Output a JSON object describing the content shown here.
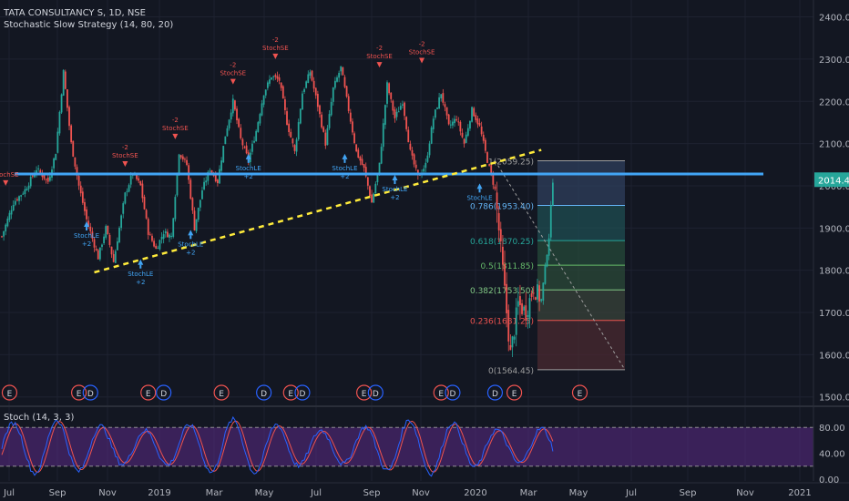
{
  "header": {
    "symbol_line": "TATA CONSULTANCY S, 1D, NSE",
    "strategy_line": "Stochastic Slow Strategy (14, 80, 20)"
  },
  "colors": {
    "background": "#131722",
    "grid": "#1e2230",
    "axis_text": "#b2b5be",
    "candle_up": "#26a69a",
    "candle_down": "#ef5350",
    "support_line": "#42a5f5",
    "trend_line": "#ffeb3b",
    "stoch_band": "#5b2a86",
    "stoch_k": "#2962ff",
    "stoch_d": "#ef5350",
    "price_label_bg": "#26a69a",
    "signal_long": "#42a5f5",
    "signal_short": "#ef5350"
  },
  "chart_data": [
    {
      "type": "candlestick",
      "x_ticks": [
        "Jul",
        "Sep",
        "Nov",
        "2019",
        "Mar",
        "May",
        "Jul",
        "Sep",
        "Nov",
        "2020",
        "Mar",
        "May",
        "Jul",
        "Sep",
        "Nov",
        "2021"
      ],
      "y_ticks": [
        "2400.00",
        "2300.00",
        "2200.00",
        "2100.00",
        "2000.00",
        "1900.00",
        "1800.00",
        "1700.00",
        "1600.00",
        "1500.00"
      ],
      "ylim": [
        1480,
        2440
      ],
      "last_price": "2014.45",
      "close_path": [
        {
          "t": 0,
          "v": 1880
        },
        {
          "t": 3,
          "v": 1960
        },
        {
          "t": 6,
          "v": 1990
        },
        {
          "t": 9,
          "v": 2040
        },
        {
          "t": 12,
          "v": 2010
        },
        {
          "t": 14,
          "v": 2080
        },
        {
          "t": 16,
          "v": 2270
        },
        {
          "t": 18,
          "v": 2100
        },
        {
          "t": 20,
          "v": 2000
        },
        {
          "t": 22,
          "v": 1920
        },
        {
          "t": 25,
          "v": 1830
        },
        {
          "t": 27,
          "v": 1900
        },
        {
          "t": 29,
          "v": 1820
        },
        {
          "t": 32,
          "v": 1980
        },
        {
          "t": 34,
          "v": 2030
        },
        {
          "t": 36,
          "v": 2000
        },
        {
          "t": 38,
          "v": 1890
        },
        {
          "t": 40,
          "v": 1850
        },
        {
          "t": 42,
          "v": 1890
        },
        {
          "t": 44,
          "v": 1880
        },
        {
          "t": 46,
          "v": 2080
        },
        {
          "t": 48,
          "v": 2050
        },
        {
          "t": 50,
          "v": 1900
        },
        {
          "t": 52,
          "v": 1990
        },
        {
          "t": 54,
          "v": 2040
        },
        {
          "t": 56,
          "v": 2010
        },
        {
          "t": 58,
          "v": 2120
        },
        {
          "t": 60,
          "v": 2200
        },
        {
          "t": 62,
          "v": 2110
        },
        {
          "t": 64,
          "v": 2060
        },
        {
          "t": 66,
          "v": 2130
        },
        {
          "t": 68,
          "v": 2220
        },
        {
          "t": 70,
          "v": 2260
        },
        {
          "t": 72,
          "v": 2250
        },
        {
          "t": 74,
          "v": 2150
        },
        {
          "t": 76,
          "v": 2080
        },
        {
          "t": 78,
          "v": 2220
        },
        {
          "t": 80,
          "v": 2270
        },
        {
          "t": 82,
          "v": 2190
        },
        {
          "t": 84,
          "v": 2100
        },
        {
          "t": 86,
          "v": 2230
        },
        {
          "t": 88,
          "v": 2280
        },
        {
          "t": 90,
          "v": 2180
        },
        {
          "t": 92,
          "v": 2080
        },
        {
          "t": 94,
          "v": 2040
        },
        {
          "t": 96,
          "v": 1960
        },
        {
          "t": 98,
          "v": 2050
        },
        {
          "t": 100,
          "v": 2240
        },
        {
          "t": 102,
          "v": 2160
        },
        {
          "t": 104,
          "v": 2200
        },
        {
          "t": 106,
          "v": 2080
        },
        {
          "t": 108,
          "v": 2020
        },
        {
          "t": 110,
          "v": 2050
        },
        {
          "t": 112,
          "v": 2160
        },
        {
          "t": 114,
          "v": 2220
        },
        {
          "t": 116,
          "v": 2140
        },
        {
          "t": 118,
          "v": 2160
        },
        {
          "t": 120,
          "v": 2100
        },
        {
          "t": 122,
          "v": 2180
        },
        {
          "t": 124,
          "v": 2140
        },
        {
          "t": 126,
          "v": 2060
        },
        {
          "t": 128,
          "v": 1990
        },
        {
          "t": 130,
          "v": 1800
        },
        {
          "t": 132,
          "v": 1600
        },
        {
          "t": 134,
          "v": 1720
        },
        {
          "t": 136,
          "v": 1700
        },
        {
          "t": 138,
          "v": 1760
        },
        {
          "t": 140,
          "v": 1730
        },
        {
          "t": 142,
          "v": 1880
        },
        {
          "t": 143,
          "v": 2014
        }
      ],
      "support_level": 2028,
      "trend_line": {
        "from": {
          "t": 24,
          "v": 1795
        },
        "to": {
          "t": 140,
          "v": 2085
        }
      },
      "fibonacci": [
        {
          "label": "1(2059.25)",
          "value": 2059.25,
          "color": "#9e9e9e"
        },
        {
          "label": "0.786(1953.40)",
          "value": 1953.4,
          "color": "#64b5f6"
        },
        {
          "label": "0.618(1870.25)",
          "value": 1870.25,
          "color": "#26a69a"
        },
        {
          "label": "0.5(1811.85)",
          "value": 1811.85,
          "color": "#66bb6a"
        },
        {
          "label": "0.382(1753.50)",
          "value": 1753.5,
          "color": "#81c784"
        },
        {
          "label": "0.236(1681.25)",
          "value": 1681.25,
          "color": "#ef5350"
        },
        {
          "label": "0(1564.45)",
          "value": 1564.45,
          "color": "#9e9e9e"
        }
      ],
      "signals": [
        {
          "kind": "short",
          "t": 1,
          "v": 1985,
          "label": "StochSE",
          "sub": ""
        },
        {
          "kind": "long",
          "t": 22,
          "v": 1920,
          "label": "StochLE",
          "sub": "+2"
        },
        {
          "kind": "short",
          "t": 32,
          "v": 2030,
          "label": "StochSE",
          "sub": "-2"
        },
        {
          "kind": "long",
          "t": 36,
          "v": 1830,
          "label": "StochLE",
          "sub": "+2"
        },
        {
          "kind": "short",
          "t": 45,
          "v": 2095,
          "label": "StochSE",
          "sub": "-2"
        },
        {
          "kind": "long",
          "t": 49,
          "v": 1900,
          "label": "StochLE",
          "sub": "+2"
        },
        {
          "kind": "short",
          "t": 60,
          "v": 2225,
          "label": "StochSE",
          "sub": "-2"
        },
        {
          "kind": "long",
          "t": 64,
          "v": 2080,
          "label": "StochLE",
          "sub": "+2"
        },
        {
          "kind": "short",
          "t": 71,
          "v": 2285,
          "label": "StochSE",
          "sub": "-2"
        },
        {
          "kind": "long",
          "t": 89,
          "v": 2080,
          "label": "StochLE",
          "sub": "+2"
        },
        {
          "kind": "short",
          "t": 98,
          "v": 2265,
          "label": "StochSE",
          "sub": "-2"
        },
        {
          "kind": "long",
          "t": 102,
          "v": 2030,
          "label": "StochLE",
          "sub": "+2"
        },
        {
          "kind": "short",
          "t": 109,
          "v": 2275,
          "label": "StochSE",
          "sub": "-2"
        },
        {
          "kind": "long",
          "t": 124,
          "v": 2010,
          "label": "StochLE",
          "sub": ""
        }
      ],
      "events": [
        {
          "t": 2,
          "letter": "E"
        },
        {
          "t": 20,
          "letter": "E"
        },
        {
          "t": 23,
          "letter": "D"
        },
        {
          "t": 38,
          "letter": "E"
        },
        {
          "t": 42,
          "letter": "D"
        },
        {
          "t": 57,
          "letter": "E"
        },
        {
          "t": 68,
          "letter": "D"
        },
        {
          "t": 75,
          "letter": "E"
        },
        {
          "t": 78,
          "letter": "D"
        },
        {
          "t": 94,
          "letter": "E"
        },
        {
          "t": 97,
          "letter": "D"
        },
        {
          "t": 114,
          "letter": "E"
        },
        {
          "t": 117,
          "letter": "D"
        },
        {
          "t": 128,
          "letter": "D"
        },
        {
          "t": 133,
          "letter": "E"
        },
        {
          "t": 150,
          "letter": "E"
        }
      ]
    },
    {
      "type": "line",
      "title": "Stoch (14, 3, 3)",
      "y_ticks": [
        "80.00",
        "40.00",
        "0.00"
      ],
      "ylim": [
        0,
        100
      ],
      "band": [
        20,
        80
      ]
    }
  ]
}
